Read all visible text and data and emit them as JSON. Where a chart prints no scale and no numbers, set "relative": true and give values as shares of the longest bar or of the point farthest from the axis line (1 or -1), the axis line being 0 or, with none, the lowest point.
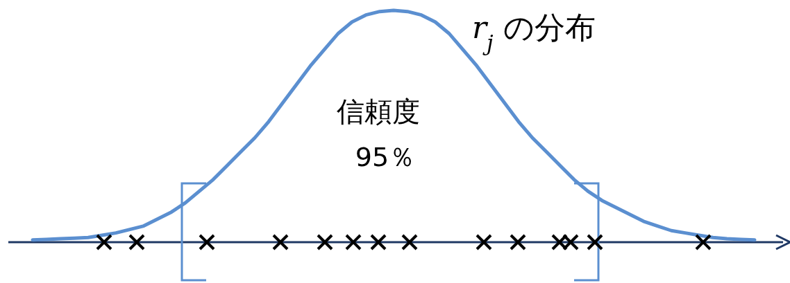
{
  "chart_data": {
    "type": "line",
    "relative": true,
    "categories": [
      null,
      null,
      null,
      null,
      null,
      null,
      null,
      null,
      null,
      null,
      null,
      null,
      null,
      null,
      null,
      null,
      null,
      null,
      null,
      null,
      null,
      null,
      null,
      null,
      null,
      null,
      null,
      null,
      null,
      null,
      null,
      null,
      null,
      null,
      null,
      null,
      null,
      null,
      null,
      null,
      null,
      null,
      null,
      null,
      null,
      null,
      null,
      null,
      null,
      null,
      null,
      null,
      null
    ],
    "series": [
      {
        "color": "#5b8fd0",
        "values": [
          0.01,
          0.012,
          0.015,
          0.017,
          0.02,
          0.03,
          0.04,
          0.055,
          0.07,
          0.1,
          0.13,
          0.17,
          0.22,
          0.27,
          0.33,
          0.39,
          0.45,
          0.52,
          0.6,
          0.68,
          0.76,
          0.83,
          0.9,
          0.95,
          0.98,
          0.995,
          1,
          0.995,
          0.98,
          0.95,
          0.9,
          0.83,
          0.76,
          0.68,
          0.6,
          0.52,
          0.45,
          0.39,
          0.33,
          0.27,
          0.22,
          0.18,
          0.15,
          0.12,
          0.09,
          0.07,
          0.05,
          0.04,
          0.03,
          0.02,
          0.015,
          0.012,
          0.01
        ]
      }
    ],
    "annotations": [
      "r$_{j}$ の分布",
      "信頼度",
      "95％"
    ]
  }
}
